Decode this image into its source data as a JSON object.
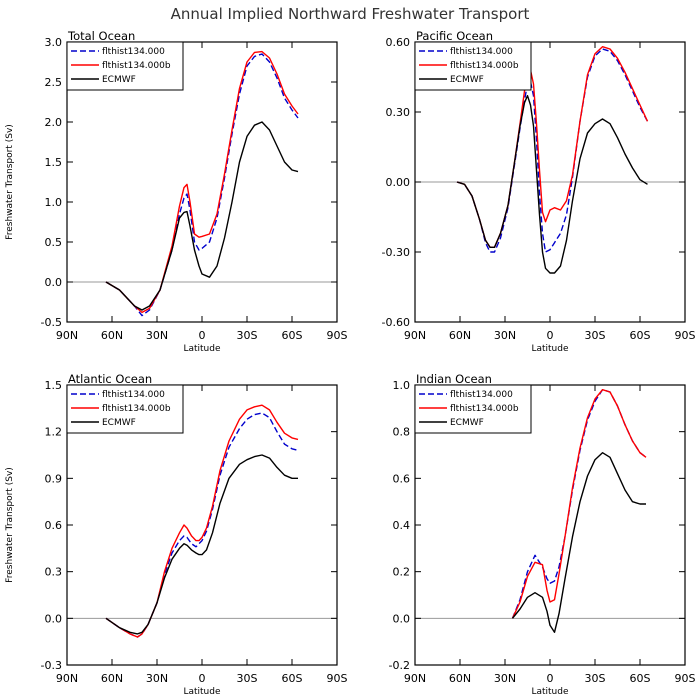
{
  "title": "Annual Implied Northward Freshwater Transport",
  "colors": {
    "flthist134.000": "#0000cc",
    "flthist134.000b": "#ff0000",
    "ECMWF": "#000000"
  },
  "chart_data": [
    {
      "type": "line",
      "title": "Total Ocean",
      "xlabel": "Latitude",
      "ylabel": "Freshwater Transport (Sv)",
      "xlim": [
        90,
        -90
      ],
      "ylim": [
        -0.5,
        3.0
      ],
      "xticks": [
        90,
        60,
        30,
        0,
        -30,
        -60,
        -90
      ],
      "xticklabels": [
        "90N",
        "60N",
        "30N",
        "0",
        "30S",
        "60S",
        "90S"
      ],
      "yticks": [
        -0.5,
        0.0,
        0.5,
        1.0,
        1.5,
        2.0,
        2.5,
        3.0
      ],
      "yticklabels": [
        "-0.5",
        "0.0",
        "0.5",
        "1.0",
        "1.5",
        "2.0",
        "2.5",
        "3.0"
      ],
      "grid": false,
      "legend": "top-left",
      "series": [
        {
          "name": "flthist134.000",
          "style": "dashed",
          "x": [
            64,
            55,
            45,
            40,
            35,
            28,
            20,
            15,
            12,
            10,
            8,
            5,
            2,
            0,
            -5,
            -10,
            -15,
            -20,
            -25,
            -30,
            -35,
            -40,
            -45,
            -50,
            -55,
            -60,
            -64
          ],
          "y": [
            0,
            -0.1,
            -0.3,
            -0.42,
            -0.35,
            -0.1,
            0.4,
            0.85,
            1.05,
            1.1,
            0.9,
            0.5,
            0.4,
            0.42,
            0.5,
            0.8,
            1.3,
            1.85,
            2.35,
            2.7,
            2.82,
            2.85,
            2.75,
            2.55,
            2.3,
            2.15,
            2.05
          ]
        },
        {
          "name": "flthist134.000b",
          "style": "solid",
          "x": [
            64,
            55,
            45,
            40,
            35,
            28,
            20,
            15,
            12,
            10,
            8,
            5,
            2,
            0,
            -5,
            -10,
            -15,
            -20,
            -25,
            -30,
            -35,
            -40,
            -45,
            -50,
            -55,
            -60,
            -64
          ],
          "y": [
            0,
            -0.1,
            -0.3,
            -0.38,
            -0.33,
            -0.1,
            0.45,
            0.95,
            1.18,
            1.22,
            1.0,
            0.6,
            0.56,
            0.57,
            0.6,
            0.85,
            1.35,
            1.9,
            2.42,
            2.75,
            2.87,
            2.88,
            2.8,
            2.6,
            2.35,
            2.2,
            2.1
          ]
        },
        {
          "name": "ECMWF",
          "style": "solid",
          "x": [
            64,
            55,
            45,
            40,
            35,
            28,
            20,
            15,
            12,
            10,
            8,
            5,
            2,
            0,
            -5,
            -10,
            -15,
            -20,
            -25,
            -30,
            -35,
            -40,
            -45,
            -50,
            -55,
            -60,
            -64
          ],
          "y": [
            0,
            -0.1,
            -0.3,
            -0.35,
            -0.3,
            -0.1,
            0.4,
            0.8,
            0.87,
            0.88,
            0.7,
            0.4,
            0.2,
            0.1,
            0.06,
            0.2,
            0.55,
            1.0,
            1.5,
            1.82,
            1.96,
            2.0,
            1.9,
            1.7,
            1.5,
            1.4,
            1.38
          ]
        }
      ]
    },
    {
      "type": "line",
      "title": "Pacific Ocean",
      "xlabel": "Latitude",
      "ylabel": "",
      "xlim": [
        90,
        -90
      ],
      "ylim": [
        -0.6,
        0.6
      ],
      "xticks": [
        90,
        60,
        30,
        0,
        -30,
        -60,
        -90
      ],
      "xticklabels": [
        "90N",
        "60N",
        "30N",
        "0",
        "30S",
        "60S",
        "90S"
      ],
      "yticks": [
        -0.6,
        -0.3,
        0.0,
        0.3,
        0.6
      ],
      "yticklabels": [
        "-0.60",
        "-0.30",
        "0.00",
        "0.30",
        "0.60"
      ],
      "grid": false,
      "legend": "top-left",
      "series": [
        {
          "name": "flthist134.000",
          "style": "dashed",
          "x": [
            62,
            57,
            52,
            47,
            43,
            40,
            37,
            33,
            28,
            24,
            20,
            17,
            15,
            13,
            11,
            9,
            7,
            5,
            3,
            0,
            -3,
            -7,
            -11,
            -15,
            -20,
            -25,
            -30,
            -35,
            -40,
            -45,
            -50,
            -55,
            -60,
            -65
          ],
          "y": [
            0,
            -0.01,
            -0.06,
            -0.16,
            -0.26,
            -0.3,
            -0.3,
            -0.24,
            -0.11,
            0.06,
            0.23,
            0.35,
            0.42,
            0.43,
            0.37,
            0.18,
            -0.05,
            -0.22,
            -0.3,
            -0.29,
            -0.26,
            -0.22,
            -0.14,
            0.02,
            0.26,
            0.45,
            0.54,
            0.57,
            0.56,
            0.52,
            0.46,
            0.39,
            0.32,
            0.26
          ]
        },
        {
          "name": "flthist134.000b",
          "style": "solid",
          "x": [
            62,
            57,
            52,
            47,
            43,
            40,
            37,
            33,
            28,
            24,
            20,
            17,
            15,
            13,
            11,
            9,
            7,
            5,
            3,
            0,
            -3,
            -7,
            -11,
            -15,
            -20,
            -25,
            -30,
            -35,
            -40,
            -45,
            -50,
            -55,
            -60,
            -65
          ],
          "y": [
            0,
            -0.01,
            -0.06,
            -0.16,
            -0.25,
            -0.28,
            -0.28,
            -0.22,
            -0.1,
            0.07,
            0.25,
            0.39,
            0.46,
            0.48,
            0.42,
            0.25,
            0.05,
            -0.13,
            -0.17,
            -0.12,
            -0.11,
            -0.12,
            -0.08,
            0.03,
            0.26,
            0.46,
            0.55,
            0.58,
            0.57,
            0.53,
            0.47,
            0.4,
            0.33,
            0.26
          ]
        },
        {
          "name": "ECMWF",
          "style": "solid",
          "x": [
            62,
            57,
            52,
            47,
            43,
            40,
            37,
            33,
            28,
            24,
            20,
            17,
            15,
            13,
            11,
            9,
            7,
            5,
            3,
            0,
            -3,
            -7,
            -11,
            -15,
            -20,
            -25,
            -30,
            -35,
            -40,
            -45,
            -50,
            -55,
            -60,
            -65
          ],
          "y": [
            0,
            -0.01,
            -0.06,
            -0.16,
            -0.25,
            -0.28,
            -0.28,
            -0.22,
            -0.1,
            0.07,
            0.24,
            0.34,
            0.37,
            0.33,
            0.24,
            0.05,
            -0.14,
            -0.3,
            -0.37,
            -0.39,
            -0.39,
            -0.36,
            -0.25,
            -0.08,
            0.1,
            0.21,
            0.25,
            0.27,
            0.25,
            0.19,
            0.12,
            0.06,
            0.01,
            -0.01
          ]
        }
      ]
    },
    {
      "type": "line",
      "title": "Atlantic Ocean",
      "xlabel": "Latitude",
      "ylabel": "Freshwater Transport (Sv)",
      "xlim": [
        90,
        -90
      ],
      "ylim": [
        -0.3,
        1.5
      ],
      "xticks": [
        90,
        60,
        30,
        0,
        -30,
        -60,
        -90
      ],
      "xticklabels": [
        "90N",
        "60N",
        "30N",
        "0",
        "30S",
        "60S",
        "90S"
      ],
      "yticks": [
        -0.3,
        0.0,
        0.3,
        0.6,
        0.9,
        1.2,
        1.5
      ],
      "yticklabels": [
        "-0.3",
        "0.0",
        "0.3",
        "0.6",
        "0.9",
        "1.2",
        "1.5"
      ],
      "grid": false,
      "legend": "top-left",
      "series": [
        {
          "name": "flthist134.000",
          "style": "dashed",
          "x": [
            64,
            55,
            48,
            43,
            40,
            36,
            30,
            25,
            20,
            15,
            12,
            10,
            7,
            4,
            2,
            0,
            -3,
            -7,
            -12,
            -18,
            -25,
            -30,
            -35,
            -40,
            -45,
            -50,
            -55,
            -60,
            -64
          ],
          "y": [
            0,
            -0.06,
            -0.1,
            -0.12,
            -0.1,
            -0.04,
            0.1,
            0.28,
            0.42,
            0.5,
            0.53,
            0.52,
            0.48,
            0.46,
            0.48,
            0.5,
            0.56,
            0.7,
            0.92,
            1.1,
            1.22,
            1.28,
            1.31,
            1.32,
            1.29,
            1.2,
            1.12,
            1.09,
            1.08
          ]
        },
        {
          "name": "flthist134.000b",
          "style": "solid",
          "x": [
            64,
            55,
            48,
            43,
            40,
            36,
            30,
            25,
            20,
            15,
            12,
            10,
            7,
            4,
            2,
            0,
            -3,
            -7,
            -12,
            -18,
            -25,
            -30,
            -35,
            -40,
            -45,
            -50,
            -55,
            -60,
            -64
          ],
          "y": [
            0,
            -0.06,
            -0.1,
            -0.12,
            -0.1,
            -0.04,
            0.1,
            0.3,
            0.45,
            0.55,
            0.6,
            0.58,
            0.53,
            0.5,
            0.5,
            0.52,
            0.58,
            0.72,
            0.95,
            1.14,
            1.28,
            1.34,
            1.36,
            1.37,
            1.34,
            1.26,
            1.19,
            1.16,
            1.15
          ]
        },
        {
          "name": "ECMWF",
          "style": "solid",
          "x": [
            64,
            55,
            48,
            43,
            40,
            36,
            30,
            25,
            20,
            15,
            12,
            10,
            7,
            4,
            2,
            0,
            -3,
            -7,
            -12,
            -18,
            -25,
            -30,
            -35,
            -40,
            -45,
            -50,
            -55,
            -60,
            -64
          ],
          "y": [
            0,
            -0.06,
            -0.09,
            -0.1,
            -0.09,
            -0.04,
            0.1,
            0.26,
            0.38,
            0.45,
            0.48,
            0.47,
            0.44,
            0.42,
            0.41,
            0.41,
            0.44,
            0.55,
            0.74,
            0.9,
            0.99,
            1.02,
            1.04,
            1.05,
            1.03,
            0.97,
            0.92,
            0.9,
            0.9
          ]
        }
      ]
    },
    {
      "type": "line",
      "title": "Indian Ocean",
      "xlabel": "Latitude",
      "ylabel": "",
      "xlim": [
        90,
        -90
      ],
      "ylim": [
        -0.2,
        1.0
      ],
      "xticks": [
        90,
        60,
        30,
        0,
        -30,
        -60,
        -90
      ],
      "xticklabels": [
        "90N",
        "60N",
        "30N",
        "0",
        "30S",
        "60S",
        "90S"
      ],
      "yticks": [
        -0.2,
        0.0,
        0.2,
        0.4,
        0.6,
        0.8,
        1.0
      ],
      "yticklabels": [
        "-0.2",
        "0.0",
        "0.2",
        "0.4",
        "0.6",
        "0.8",
        "1.0"
      ],
      "grid": false,
      "legend": "top-left",
      "series": [
        {
          "name": "flthist134.000",
          "style": "dashed",
          "x": [
            25,
            20,
            15,
            10,
            5,
            2,
            0,
            -3,
            -6,
            -10,
            -15,
            -20,
            -25,
            -30,
            -35,
            -40,
            -45,
            -50,
            -55,
            -60,
            -64
          ],
          "y": [
            0,
            0.08,
            0.2,
            0.27,
            0.22,
            0.17,
            0.15,
            0.16,
            0.22,
            0.35,
            0.55,
            0.72,
            0.85,
            0.93,
            0.98,
            0.97,
            0.91,
            0.83,
            0.76,
            0.71,
            0.69
          ]
        },
        {
          "name": "flthist134.000b",
          "style": "solid",
          "x": [
            25,
            20,
            15,
            10,
            5,
            2,
            0,
            -3,
            -6,
            -10,
            -15,
            -20,
            -25,
            -30,
            -35,
            -40,
            -45,
            -50,
            -55,
            -60,
            -64
          ],
          "y": [
            0,
            0.07,
            0.18,
            0.24,
            0.23,
            0.12,
            0.07,
            0.08,
            0.19,
            0.35,
            0.56,
            0.73,
            0.86,
            0.94,
            0.98,
            0.97,
            0.91,
            0.83,
            0.76,
            0.71,
            0.69
          ]
        },
        {
          "name": "ECMWF",
          "style": "solid",
          "x": [
            25,
            20,
            15,
            10,
            5,
            2,
            0,
            -3,
            -6,
            -10,
            -15,
            -20,
            -25,
            -30,
            -35,
            -40,
            -45,
            -50,
            -55,
            -60,
            -64
          ],
          "y": [
            0,
            0.04,
            0.09,
            0.11,
            0.09,
            0.03,
            -0.03,
            -0.06,
            0.02,
            0.17,
            0.35,
            0.5,
            0.61,
            0.68,
            0.71,
            0.69,
            0.62,
            0.55,
            0.5,
            0.49,
            0.49
          ]
        }
      ]
    }
  ]
}
